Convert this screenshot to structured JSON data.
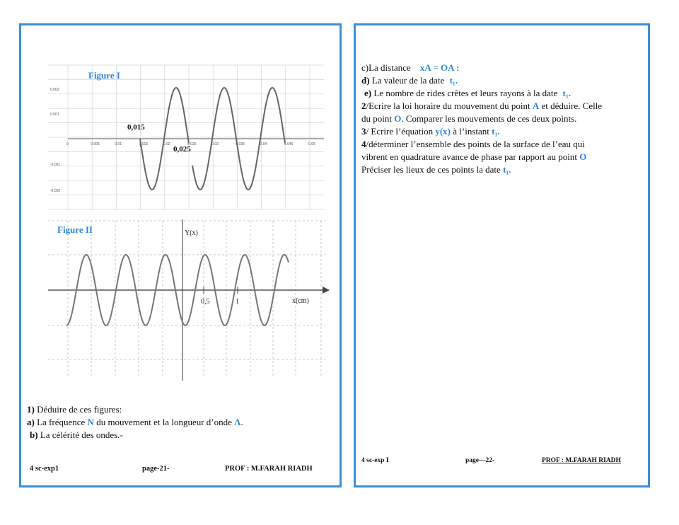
{
  "page1": {
    "figure1": {
      "title": "Figure I",
      "ann1": "0,015",
      "ann2": "0,025",
      "x_ticks": [
        "0",
        "0.005",
        "0.01",
        "0.015",
        "0.02",
        "0.025",
        "0.03",
        "0.035",
        "0.04",
        "0.045",
        "0.05"
      ],
      "y_ticks": [
        "0.002",
        "0.001",
        "0",
        "-0.001",
        "-0.002"
      ]
    },
    "figure2": {
      "title": "Figure II",
      "ylabel": "Y(x)",
      "xlabel": "x(cm)",
      "tick_05": "0,5",
      "tick_1": "1"
    },
    "q1": {
      "num": "1)",
      "text": " Déduire de ces figures:"
    },
    "qa": {
      "label": "a)",
      "text1": " La fréquence ",
      "sym1": "N",
      "text2": " du mouvement et la longueur d’onde ",
      "sym2": "Λ",
      "text3": "."
    },
    "qb": {
      "label": "b)",
      "text": " La célérité des ondes.-"
    },
    "footer": {
      "left": "4 sc-exp1",
      "center": "page-21-",
      "right": "PROF : M.FARAH RIADH"
    }
  },
  "page2": {
    "c": {
      "text": "c)La distance",
      "sym": "xA = OA :"
    },
    "d": {
      "label": "d)",
      "text": " La valeur de la date",
      "sym": "t₁."
    },
    "e": {
      "label": "e)",
      "text": " Le nombre de rides crêtes et leurs rayons à la date",
      "sym": "t₁."
    },
    "q2": {
      "num": "2",
      "text1": "/Ecrire la loi horaire du mouvement du point ",
      "symA": "A",
      "text2": " et déduire. Celle",
      "line2a": "du point ",
      "symO": "O",
      "line2b": ". Comparer les mouvements de ces deux points."
    },
    "q3": {
      "num": "3",
      "text": "/ Ecrire l’équation",
      "sym": "y(x)",
      "text2": " à l’instant",
      "sym2": "t₁."
    },
    "q4": {
      "num": "4",
      "line1": "/déterminer l’ensemble des points de la surface de l’eau qui",
      "line2": "vibrent en quadrature avance de phase par rapport au point",
      "symO": "O",
      "line3": "Préciser les lieux de ces points la date",
      "sym3": "t₁."
    },
    "footer": {
      "left": "4 sc-exp I",
      "center": "page—22-",
      "right": "PROF : M.FARAH RIADH"
    }
  },
  "colors": {
    "border": "#3a8fdc",
    "accent": "#2f86d8"
  }
}
